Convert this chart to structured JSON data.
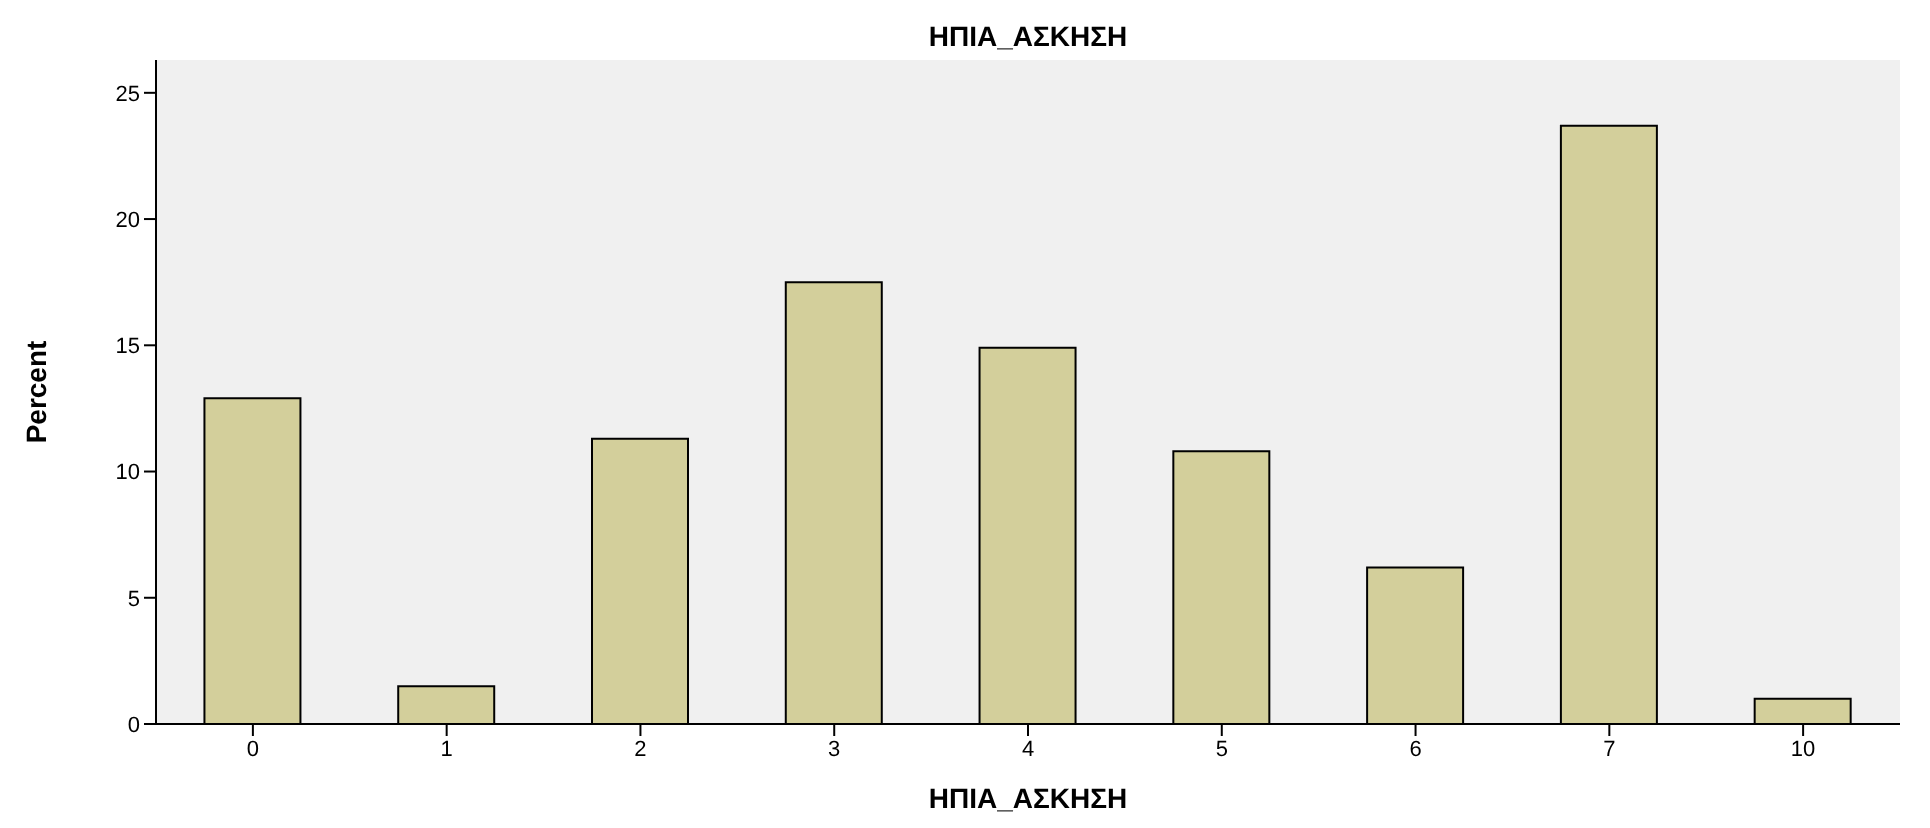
{
  "chart_data": {
    "type": "bar",
    "title": "ΗΠΙΑ_ΑΣΚΗΣΗ",
    "xlabel": "ΗΠΙΑ_ΑΣΚΗΣΗ",
    "ylabel": "Percent",
    "categories": [
      "0",
      "1",
      "2",
      "3",
      "4",
      "5",
      "6",
      "7",
      "10"
    ],
    "values": [
      12.9,
      1.5,
      11.3,
      17.5,
      14.9,
      10.8,
      6.2,
      23.7,
      1.0
    ],
    "color": "#d3cf9b",
    "ylim": [
      0,
      26.3
    ],
    "yticks": [
      0,
      5,
      10,
      15,
      20,
      25
    ],
    "grid": false
  }
}
